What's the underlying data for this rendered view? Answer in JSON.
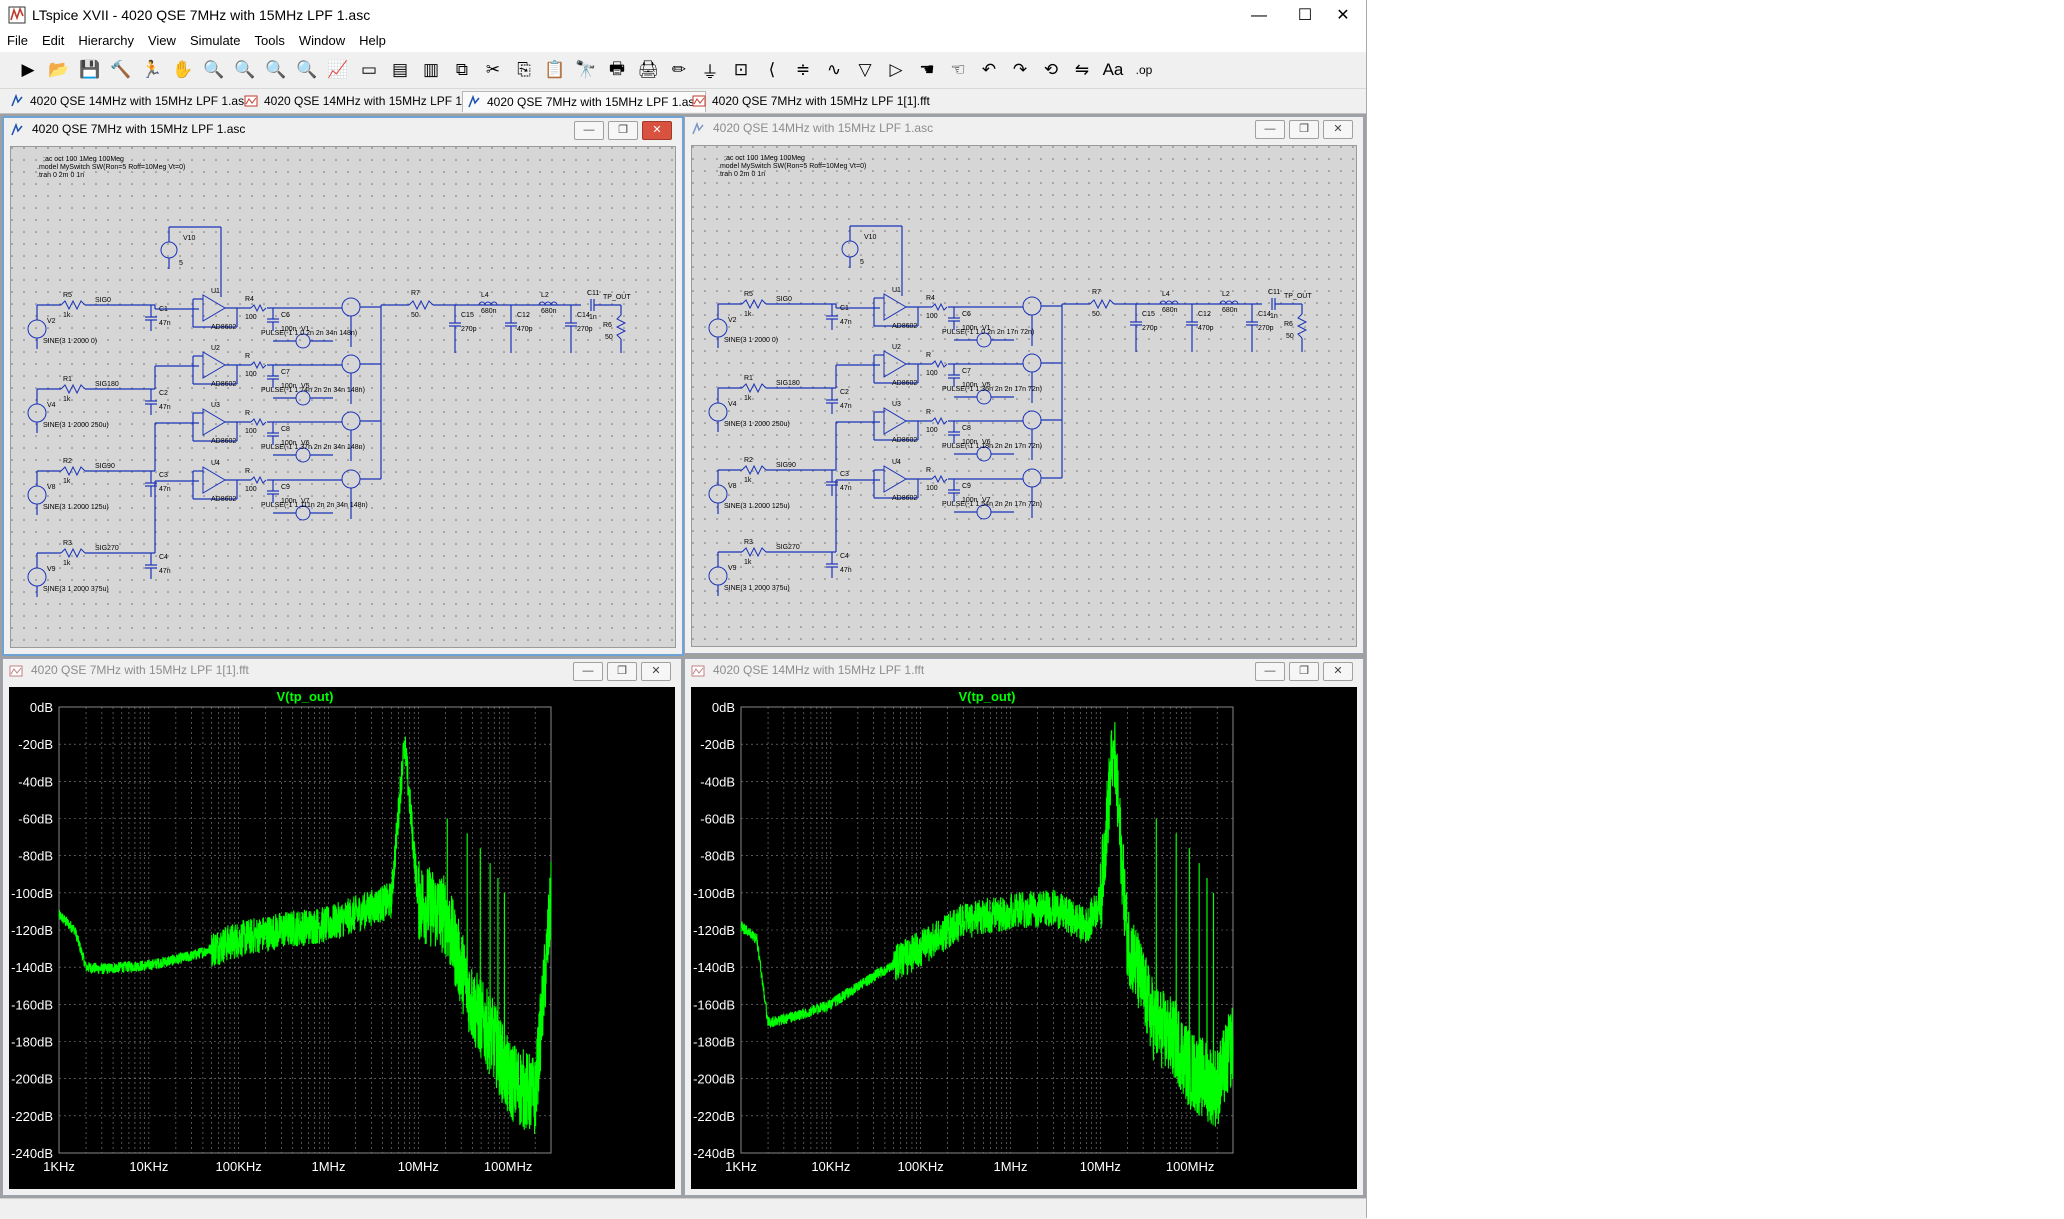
{
  "window": {
    "title": "LTspice XVII - 4020 QSE 7MHz with 15MHz LPF 1.asc",
    "controls": [
      "—",
      "☐",
      "✕"
    ]
  },
  "menu": [
    "File",
    "Edit",
    "Hierarchy",
    "View",
    "Simulate",
    "Tools",
    "Window",
    "Help"
  ],
  "toolbar": {
    "icons": [
      "open-new-schematic",
      "open-folder",
      "save",
      "control-panel",
      "run",
      "halt",
      "zoom-in",
      "pan",
      "zoom-full",
      "zoom-out",
      "autorange",
      "cancel",
      "tile-horizontal",
      "tile-vertical",
      "cascade",
      "cut",
      "copy",
      "paste",
      "find",
      "print-setup",
      "print",
      "draw-wire",
      "ground",
      "label-net",
      "resistor",
      "capacitor",
      "inductor",
      "diode",
      "component",
      "move",
      "drag",
      "undo",
      "redo",
      "rotate",
      "mirror",
      "text",
      "spice-directive"
    ]
  },
  "tabs": [
    {
      "label": "4020 QSE 14MHz with 15MHz LPF 1.asc",
      "kind": "schematic",
      "active": false
    },
    {
      "label": "4020 QSE 14MHz with 15MHz LPF 1.fft",
      "kind": "waveform",
      "active": false
    },
    {
      "label": "4020 QSE 7MHz with 15MHz LPF 1.asc",
      "kind": "schematic",
      "active": true
    },
    {
      "label": "4020 QSE 7MHz with 15MHz LPF 1[1].fft",
      "kind": "waveform",
      "active": false
    }
  ],
  "schematics": [
    {
      "title": "4020 QSE 7MHz with 15MHz LPF 1.asc",
      "active": true,
      "directives": [
        ";ac oct 100 1Meg 100Meg",
        ".model MySwitch SW(Ron=5 Roff=10Meg Vt=0)",
        ".tran 0 2m 0 1n"
      ],
      "pulses": [
        "PULSE(-1 1 0 2n 2n 34n 148n)",
        "PULSE(-1 1 74n 2n 2n 34n 148n)",
        "PULSE(-1 1 37n 2n 2n 34n 148n)",
        "PULSE(-1 1 111n 2n 2n 34n 148n)"
      ],
      "filter": {
        "c15": "270p",
        "c12": "470p",
        "c14": "270p",
        "l4": "680n",
        "l2": "680n",
        "c11": "1n"
      }
    },
    {
      "title": "4020 QSE 14MHz with 15MHz LPF 1.asc",
      "active": false,
      "directives": [
        ";ac oct 100 1Meg 100Meg",
        ".model MySwitch SW(Ron=5 Roff=10Meg Vt=0)",
        ".tran 0 2m 0 1n"
      ],
      "pulses": [
        "PULSE(-1 1 0 2n 2n 17n 72n)",
        "PULSE(-1 1 36n 2n 2n 17n 72n)",
        "PULSE(-1 1 18n 2n 2n 17n 72n)",
        "PULSE(-1 1 54n 2n 2n 17n 72n)"
      ],
      "filter": {
        "c15": "270p",
        "c12": "470p",
        "c14": "270p",
        "l4": "680n",
        "l2": "680n",
        "c11": "1n"
      }
    }
  ],
  "common_schematic": {
    "v10": "V10",
    "v10_value": "5",
    "sources": [
      {
        "name": "V2",
        "sig": "SIG0",
        "r": "R5",
        "rv": "1k",
        "spec": "SINE(3 1 2000 0)"
      },
      {
        "name": "V4",
        "sig": "SIG180",
        "r": "R1",
        "rv": "1k",
        "spec": "SINE(3 1 2000 250u)"
      },
      {
        "name": "V8",
        "sig": "SIG90",
        "r": "R2",
        "rv": "1k",
        "spec": "SINE(3 1 2000 125u)"
      },
      {
        "name": "V9",
        "sig": "SIG270",
        "r": "R3",
        "rv": "1k",
        "spec": "SINE(3 1 2000 375u)"
      }
    ],
    "opamps": [
      "U1",
      "U2",
      "U3",
      "U4"
    ],
    "opamp_model": "AD8602",
    "caps47": [
      "C1",
      "C2",
      "C3",
      "C4"
    ],
    "cap47_value": "47n",
    "caps100": [
      "C6",
      "C7",
      "C8",
      "C9"
    ],
    "cap100_value": "100n",
    "gate_sources": [
      "V1",
      "V5",
      "V6",
      "V7"
    ],
    "series_r": "100",
    "r7": "R7",
    "r7v": "50",
    "out_label": "TP_OUT",
    "r6": "R6",
    "r6v": "50"
  },
  "waveforms": [
    {
      "title": "4020 QSE 7MHz with 15MHz LPF 1[1].fft",
      "trace": "V(tp_out)",
      "spur_mhz": 7
    },
    {
      "title": "4020 QSE 14MHz with 15MHz LPF 1.fft",
      "trace": "V(tp_out)",
      "spur_mhz": 14
    }
  ],
  "chart_data": [
    {
      "type": "line",
      "title": "V(tp_out)",
      "x_scale": "log",
      "xlim": [
        1000,
        300000000
      ],
      "ylim": [
        -240,
        0
      ],
      "y_ticks": [
        "0dB",
        "-20dB",
        "-40dB",
        "-60dB",
        "-80dB",
        "-100dB",
        "-120dB",
        "-140dB",
        "-160dB",
        "-180dB",
        "-200dB",
        "-220dB",
        "-240dB"
      ],
      "x_ticks": [
        "1KHz",
        "10KHz",
        "100KHz",
        "1MHz",
        "10MHz",
        "100MHz"
      ],
      "grid": true,
      "series": [
        {
          "name": "V(tp_out)",
          "color": "#00ff00",
          "x": [
            1000,
            1500,
            2000,
            3000,
            5000,
            10000,
            30000,
            100000,
            300000,
            1000000,
            3000000,
            5000000,
            7000000,
            10000000,
            20000000,
            40000000,
            70000000,
            100000000,
            200000000,
            300000000
          ],
          "y": [
            -112,
            -120,
            -140,
            -141,
            -140,
            -139,
            -134,
            -125,
            -120,
            -117,
            -108,
            -104,
            -18,
            -104,
            -112,
            -160,
            -180,
            -200,
            -210,
            -105
          ]
        }
      ]
    },
    {
      "type": "line",
      "title": "V(tp_out)",
      "x_scale": "log",
      "xlim": [
        1000,
        300000000
      ],
      "ylim": [
        -240,
        0
      ],
      "y_ticks": [
        "0dB",
        "-20dB",
        "-40dB",
        "-60dB",
        "-80dB",
        "-100dB",
        "-120dB",
        "-140dB",
        "-160dB",
        "-180dB",
        "-200dB",
        "-220dB",
        "-240dB"
      ],
      "x_ticks": [
        "1KHz",
        "10KHz",
        "100KHz",
        "1MHz",
        "10MHz",
        "100MHz"
      ],
      "grid": true,
      "series": [
        {
          "name": "V(tp_out)",
          "color": "#00ff00",
          "x": [
            1000,
            1500,
            2000,
            3000,
            5000,
            10000,
            30000,
            100000,
            300000,
            1000000,
            3000000,
            7000000,
            10000000,
            14000000,
            20000000,
            40000000,
            70000000,
            100000000,
            200000000,
            300000000
          ],
          "y": [
            -118,
            -125,
            -170,
            -168,
            -165,
            -160,
            -145,
            -130,
            -115,
            -110,
            -108,
            -118,
            -105,
            -18,
            -125,
            -170,
            -180,
            -195,
            -205,
            -180
          ]
        }
      ]
    }
  ]
}
